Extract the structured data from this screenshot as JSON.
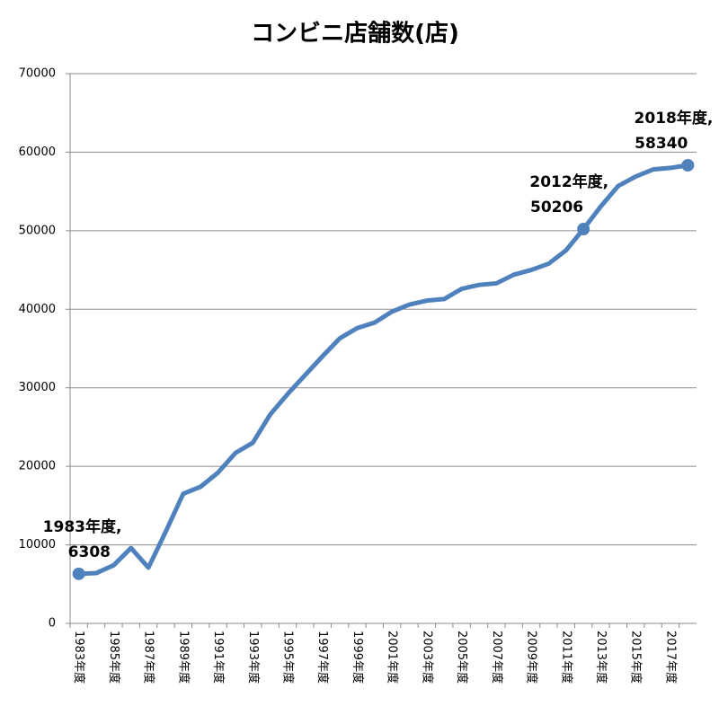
{
  "chart_data": {
    "type": "line",
    "title": "コンビニ店舗数(店)",
    "categories": [
      "1983年度",
      null,
      "1985年度",
      null,
      "1987年度",
      null,
      "1989年度",
      null,
      "1991年度",
      null,
      "1993年度",
      null,
      "1995年度",
      null,
      "1997年度",
      null,
      "1999年度",
      null,
      "2001年度",
      null,
      "2003年度",
      null,
      "2005年度",
      null,
      "2007年度",
      null,
      "2009年度",
      null,
      "2011年度",
      null,
      "2013年度",
      null,
      "2015年度",
      null,
      "2017年度",
      null
    ],
    "series": [
      {
        "color": "#4f81bd",
        "values": [
          6308,
          6400,
          7400,
          9600,
          7100,
          11700,
          16500,
          17400,
          19200,
          21700,
          23000,
          26600,
          29200,
          31600,
          34000,
          36300,
          37600,
          38300,
          39700,
          40600,
          41100,
          41300,
          42600,
          43100,
          43300,
          44400,
          45000,
          45800,
          47500,
          50206,
          53100,
          55700,
          56900,
          57800,
          58000,
          58340
        ]
      }
    ],
    "ylim": [
      0,
      70000
    ],
    "yticks": [
      0,
      10000,
      20000,
      30000,
      40000,
      50000,
      60000,
      70000
    ],
    "grid": true,
    "annotations": [
      {
        "text": "1983年度,",
        "value": 6308
      },
      {
        "text": "2012年度,",
        "value": 50206
      },
      {
        "text": "2018年度,",
        "value": 58340
      }
    ]
  }
}
